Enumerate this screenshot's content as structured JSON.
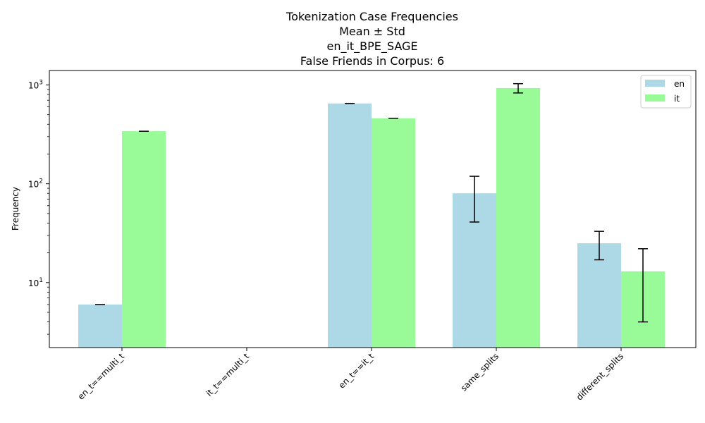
{
  "chart_data": {
    "type": "bar",
    "title_lines": [
      "Tokenization Case Frequencies",
      "Mean ± Std",
      "en_it_BPE_SAGE",
      "False Friends in Corpus: 6"
    ],
    "xlabel": "",
    "ylabel": "Frequency",
    "yscale": "log",
    "ylim": [
      2.2,
      1400
    ],
    "y_ticks": [
      {
        "value": 10,
        "base": "10",
        "exp": "1"
      },
      {
        "value": 100,
        "base": "10",
        "exp": "2"
      },
      {
        "value": 1000,
        "base": "10",
        "exp": "3"
      }
    ],
    "categories": [
      "en_t==multi_t",
      "it_t==multi_t",
      "en_t==it_t",
      "same_splits",
      "different_splits"
    ],
    "series": [
      {
        "name": "en",
        "color": "#add8e6",
        "values": [
          6,
          0,
          650,
          80,
          25
        ],
        "errors": [
          0,
          0,
          0,
          39,
          8
        ]
      },
      {
        "name": "it",
        "color": "#98fb98",
        "values": [
          340,
          0,
          460,
          930,
          13
        ],
        "errors": [
          0,
          0,
          0,
          100,
          9
        ]
      }
    ],
    "legend": {
      "placement": "top-right",
      "entries": [
        "en",
        "it"
      ]
    },
    "grid": false
  }
}
